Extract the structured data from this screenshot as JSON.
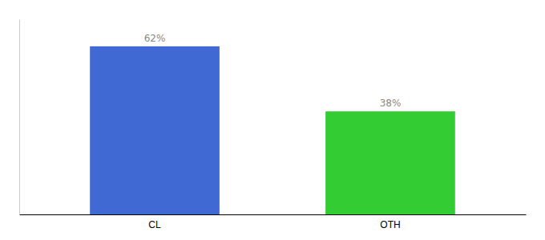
{
  "chart_data": {
    "type": "bar",
    "categories": [
      "CL",
      "OTH"
    ],
    "values": [
      62,
      38
    ],
    "colors": [
      "#4169d4",
      "#33cc33"
    ],
    "data_labels": true,
    "value_labels": [
      "62%",
      "38%"
    ],
    "ylim": [
      0,
      72
    ],
    "tick_labels": "x"
  }
}
